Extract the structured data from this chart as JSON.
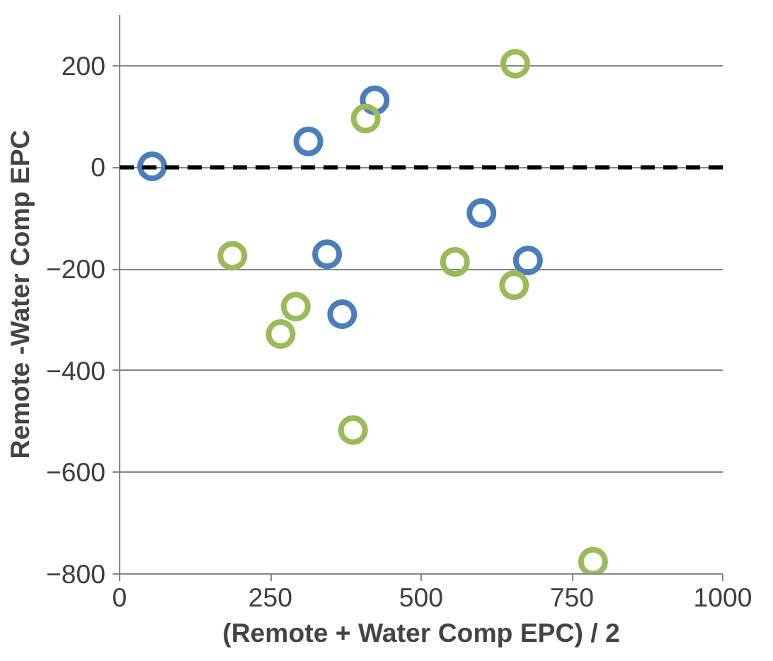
{
  "chart_data": {
    "type": "scatter",
    "xlabel": "(Remote + Water Comp EPC) / 2",
    "ylabel": "Remote -Water Comp EPC",
    "xlim": [
      0,
      1000
    ],
    "xticks": [
      0,
      250,
      500,
      750,
      1000
    ],
    "ylim": [
      -800,
      300
    ],
    "yticks": [
      -800,
      -600,
      -400,
      -200,
      0,
      200
    ],
    "grid": "y",
    "marker": "circle",
    "ref_lines": [
      {
        "axis": "y",
        "value": 0,
        "color": "#000000",
        "line_style": "dashed"
      }
    ],
    "series": [
      {
        "color": "#4a7ebb",
        "x": [
          54,
          313,
          423,
          344,
          369,
          600,
          677
        ],
        "values": [
          2,
          51,
          132,
          -171,
          -289,
          -90,
          -183
        ]
      },
      {
        "color": "#9bbb59",
        "x": [
          187,
          292,
          267,
          408,
          387,
          556,
          656,
          654,
          785
        ],
        "values": [
          -174,
          -274,
          -328,
          96,
          -517,
          -186,
          204,
          -232,
          -776
        ]
      }
    ]
  }
}
